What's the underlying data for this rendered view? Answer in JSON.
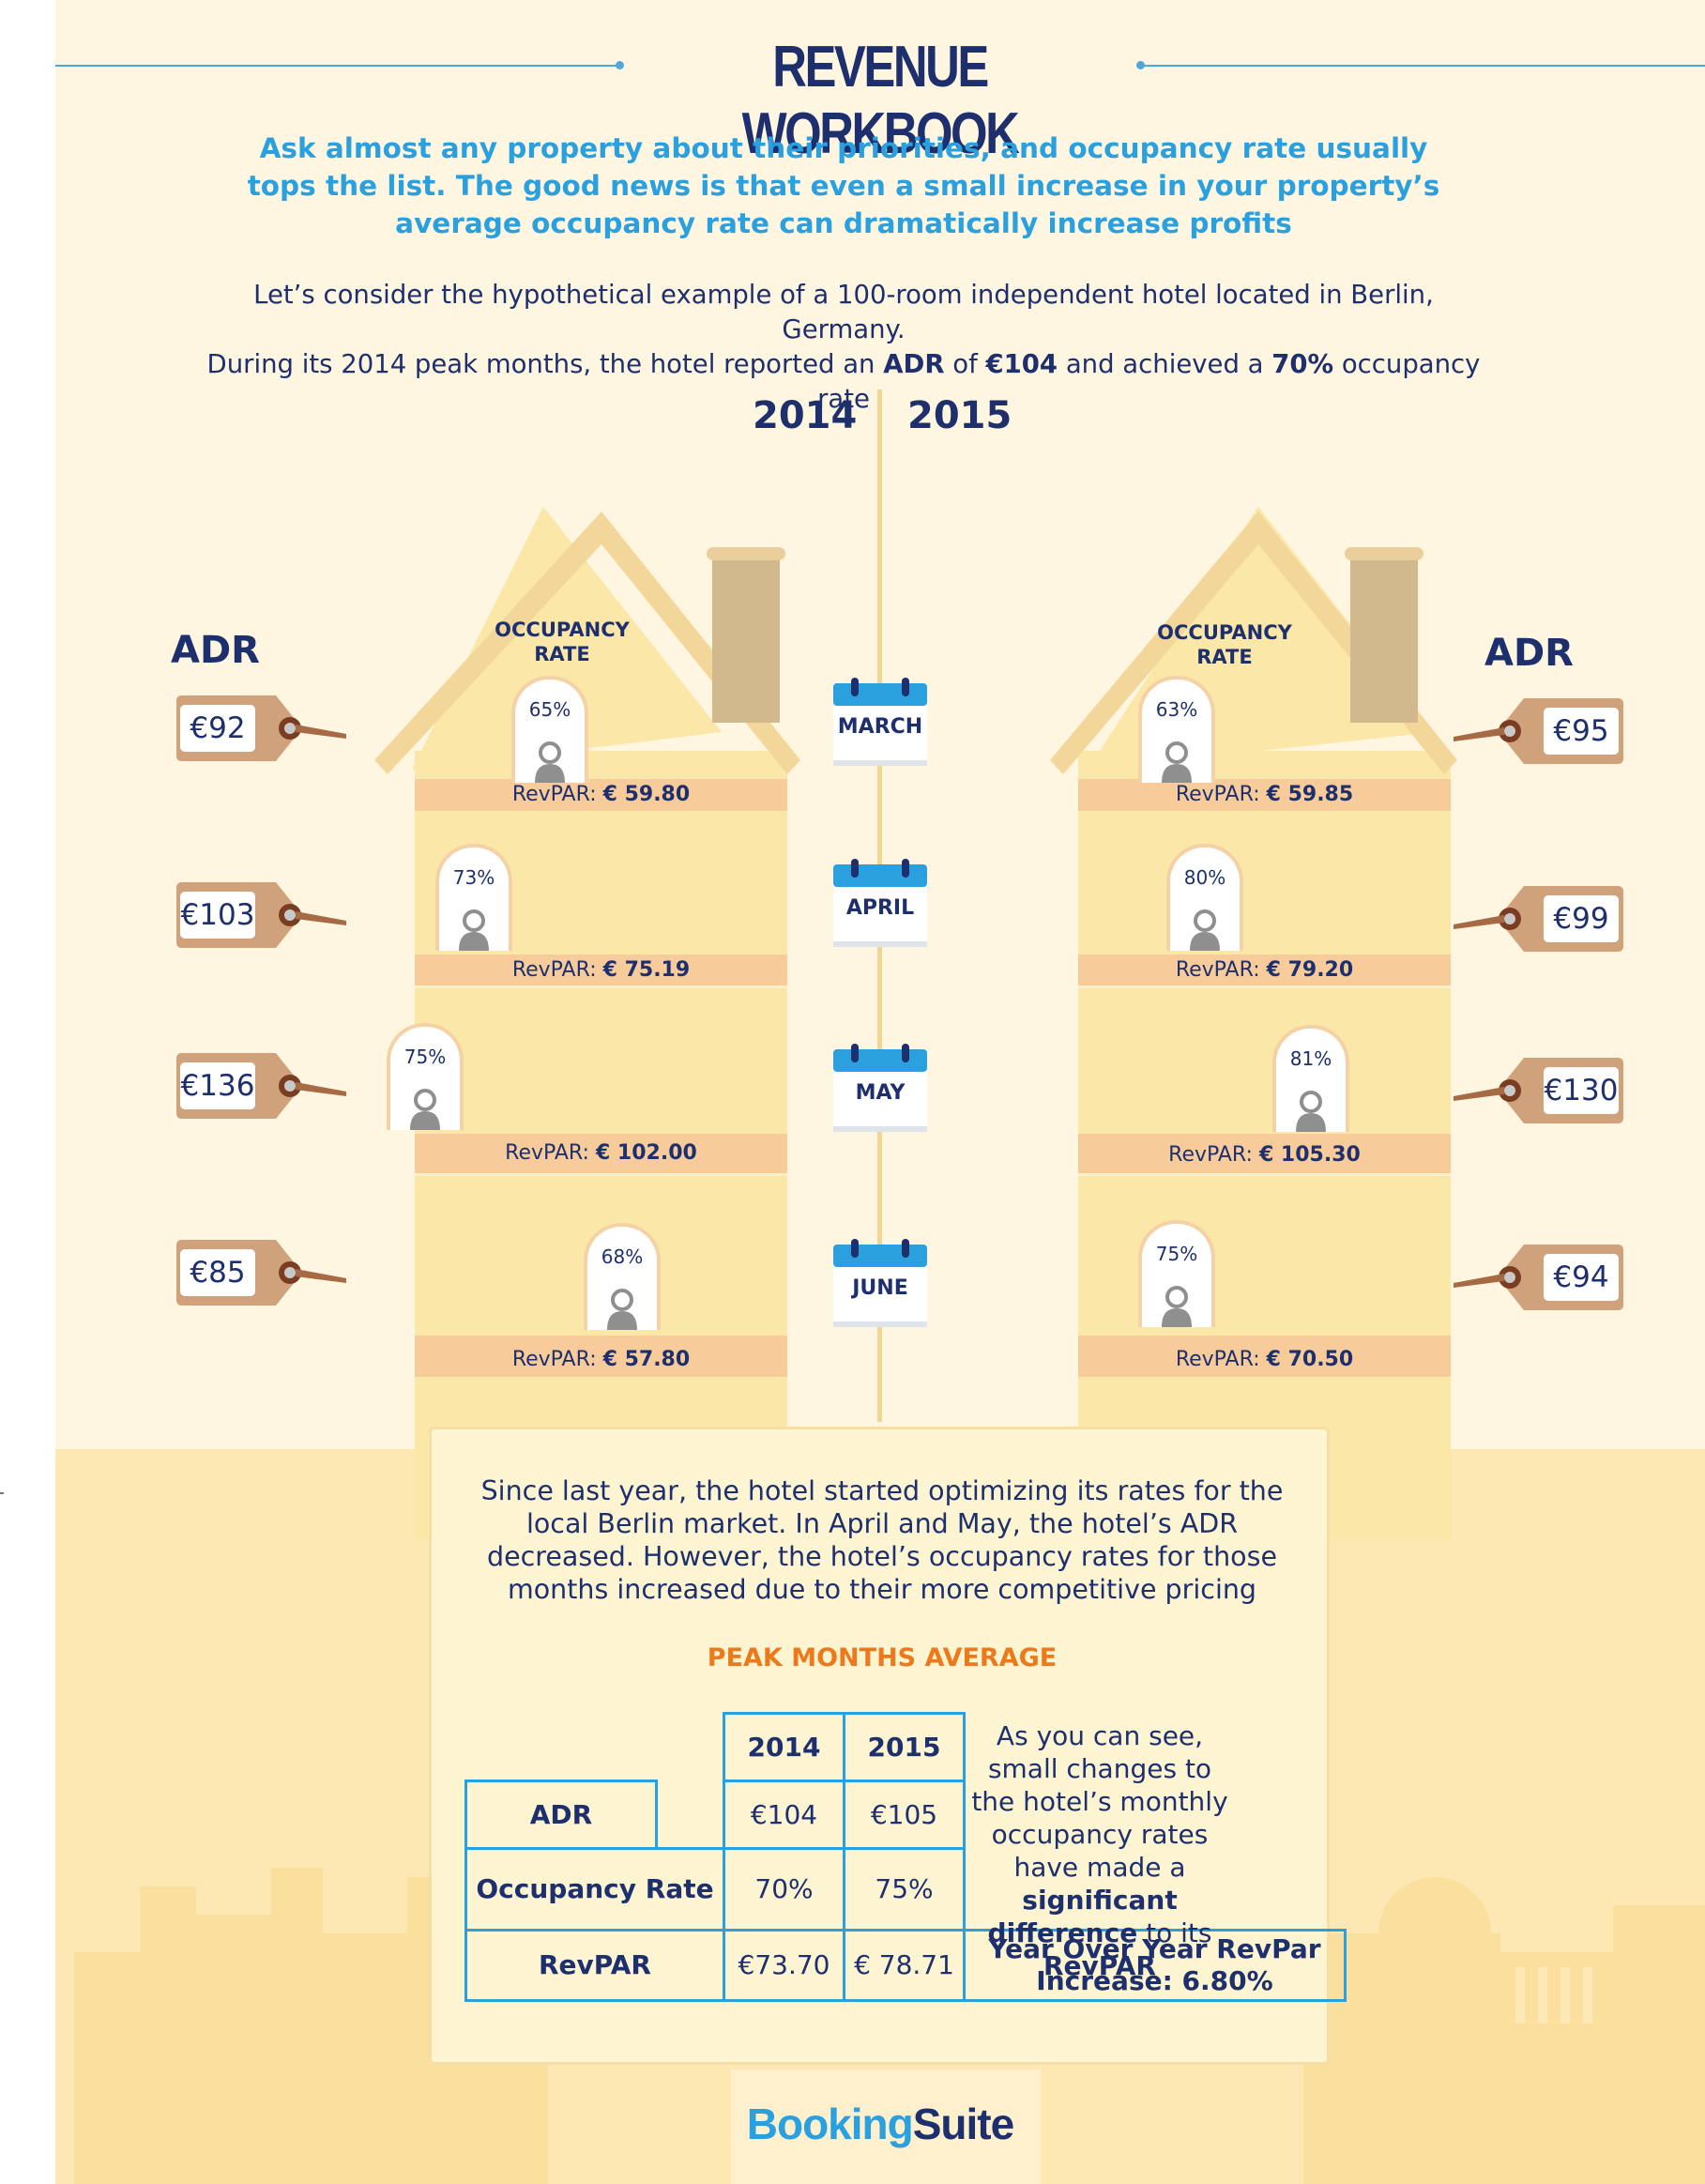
{
  "header": {
    "title": "REVENUE WORKBOOK",
    "intro": "Ask almost any property about their priorities, and occupancy rate usually tops the list. The good news is that even a small increase in your property’s average occupancy rate can dramatically increase profits",
    "context_line1": "Let’s consider the hypothetical example of a 100-room independent hotel located in Berlin, Germany.",
    "context_pre": "During its 2014 peak months, the hotel reported an ",
    "context_adr_label": "ADR",
    "context_mid1": " of ",
    "context_adr_value": "€104",
    "context_mid2": " and achieved a ",
    "context_occ_value": "70%",
    "context_post": " occupancy rate"
  },
  "years": {
    "left": "2014",
    "right": "2015"
  },
  "labels": {
    "adr": "ADR",
    "occupancy": "OCCUPANCY",
    "rate": "RATE",
    "revpar_prefix": "RevPAR: "
  },
  "months": [
    "MARCH",
    "APRIL",
    "MAY",
    "JUNE"
  ],
  "house_2014": {
    "adr": [
      "€92",
      "€103",
      "€136",
      "€85"
    ],
    "occupancy": [
      "65%",
      "73%",
      "75%",
      "68%"
    ],
    "revpar": [
      "€ 59.80",
      "€ 75.19",
      "€ 102.00",
      "€ 57.80"
    ]
  },
  "house_2015": {
    "adr": [
      "€95",
      "€99",
      "€130",
      "€94"
    ],
    "occupancy": [
      "63%",
      "80%",
      "81%",
      "75%"
    ],
    "revpar": [
      "€ 59.85",
      "€ 79.20",
      "€ 105.30",
      "€ 70.50"
    ]
  },
  "summary": {
    "text": "Since last year, the hotel started optimizing its rates for the local Berlin market. In April and May, the hotel’s ADR decreased. However, the hotel’s occupancy rates for those months increased due to their more competitive pricing",
    "peak_title": "PEAK MONTHS AVERAGE",
    "table": {
      "col_2014": "2014",
      "col_2015": "2015",
      "rows": [
        {
          "label": "ADR",
          "v2014": "€104",
          "v2015": "€105"
        },
        {
          "label": "Occupancy Rate",
          "v2014": "70%",
          "v2015": "75%"
        },
        {
          "label": "RevPAR",
          "v2014": "€73.70",
          "v2015": "€ 78.71"
        }
      ]
    },
    "note_pre": "As you can see, small changes to the hotel’s monthly occupancy rates have made a ",
    "note_bold1": "significant difference",
    "note_mid": " to its ",
    "note_bold2": "RevPAR",
    "yoy_label": "Year Over Year RevPar Increase: ",
    "yoy_value": "6.80%"
  },
  "footer": {
    "logo_part1": "Booking",
    "logo_part2": "Suite"
  },
  "colors": {
    "background": "#fef6e0",
    "house": "#fbe7a8",
    "roof": "#f3d79a",
    "revpar_band": "#f8cc9a",
    "navy": "#1e2f6e",
    "blue": "#2aa0df",
    "orange": "#ec7a1c",
    "tag": "#cfa27c"
  }
}
